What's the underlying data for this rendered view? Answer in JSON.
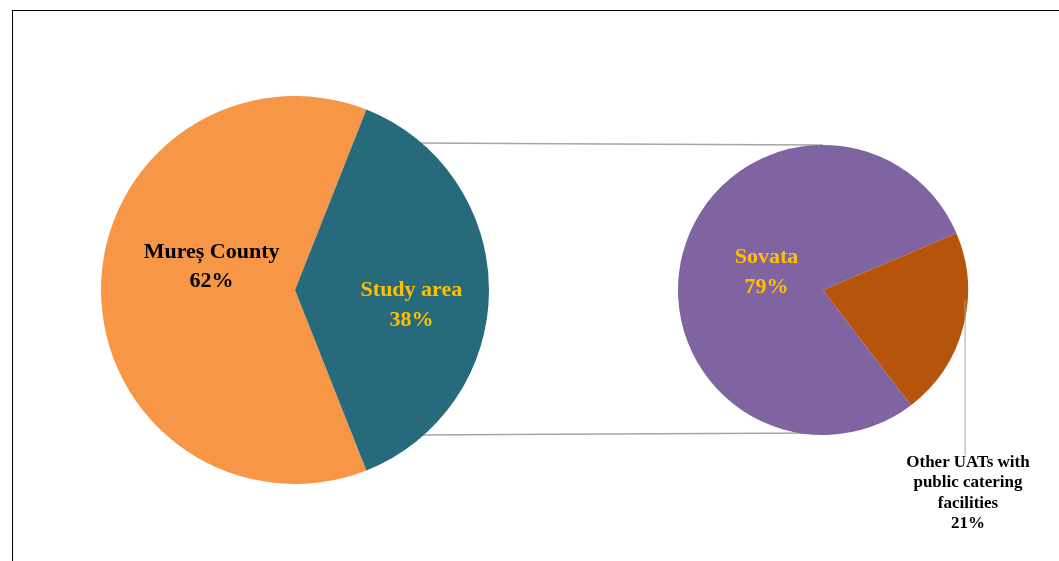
{
  "chart_data": [
    {
      "type": "pie",
      "categories": [
        "Mureș County",
        "Study area"
      ],
      "values": [
        62,
        38
      ],
      "colors": [
        "#f79646",
        "#276a7c"
      ],
      "value_labels": [
        "62%",
        "38%"
      ]
    },
    {
      "type": "pie",
      "categories": [
        "Sovata",
        "Other UATs with public catering facilities"
      ],
      "values": [
        79,
        21
      ],
      "colors": [
        "#8064a2",
        "#b5540a"
      ],
      "value_labels": [
        "79%",
        "21%"
      ]
    }
  ]
}
